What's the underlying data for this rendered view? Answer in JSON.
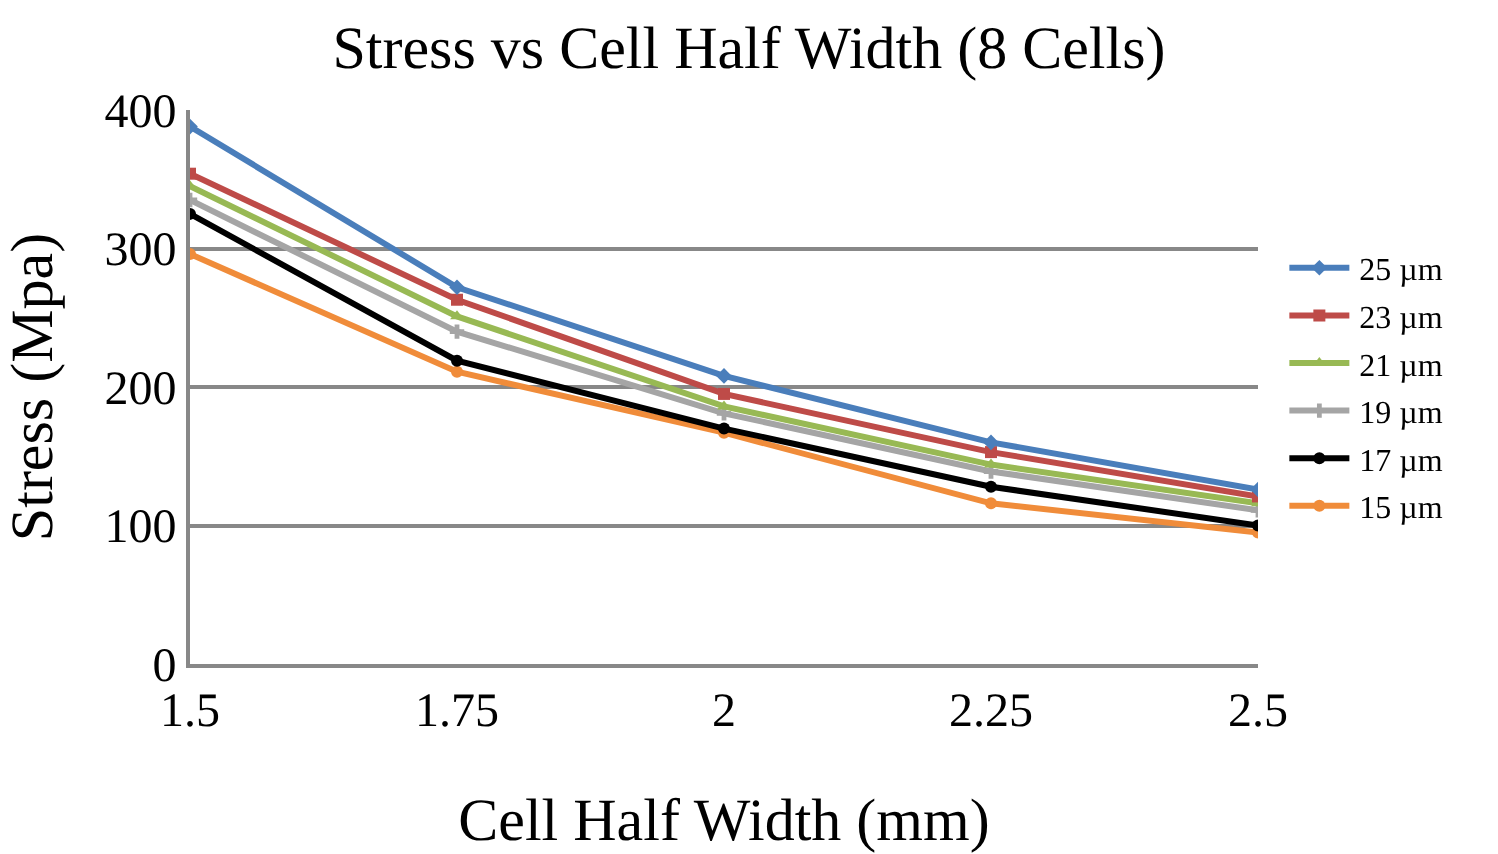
{
  "chart_data": {
    "type": "line",
    "title": "Stress vs Cell Half Width (8 Cells)",
    "xlabel": "Cell Half Width (mm)",
    "ylabel": "Stress (Mpa)",
    "x": [
      1.5,
      1.75,
      2,
      2.25,
      2.5
    ],
    "xlim": [
      1.5,
      2.5
    ],
    "xticks": [
      1.5,
      1.75,
      2,
      2.25,
      2.5
    ],
    "ylim": [
      0,
      400
    ],
    "yticks": [
      0,
      100,
      200,
      300,
      400
    ],
    "grid": "y",
    "legend": "right",
    "series": [
      {
        "name": "25 µm",
        "color": "#4a7ebb",
        "marker": "diamond",
        "values": [
          388,
          272,
          208,
          160,
          126
        ]
      },
      {
        "name": "23 µm",
        "color": "#be4b48",
        "marker": "square",
        "values": [
          354,
          263,
          195,
          153,
          121
        ]
      },
      {
        "name": "21 µm",
        "color": "#98b954",
        "marker": "triangle",
        "values": [
          345,
          251,
          186,
          144,
          116
        ]
      },
      {
        "name": "19 µm",
        "color": "#a5a5a5",
        "marker": "cross",
        "values": [
          335,
          240,
          181,
          139,
          111
        ]
      },
      {
        "name": "17 µm",
        "color": "#000000",
        "marker": "circle",
        "values": [
          325,
          219,
          170,
          128,
          100
        ]
      },
      {
        "name": "15 µm",
        "color": "#f08c3a",
        "marker": "circle",
        "values": [
          296,
          211,
          167,
          116,
          95
        ]
      }
    ]
  }
}
